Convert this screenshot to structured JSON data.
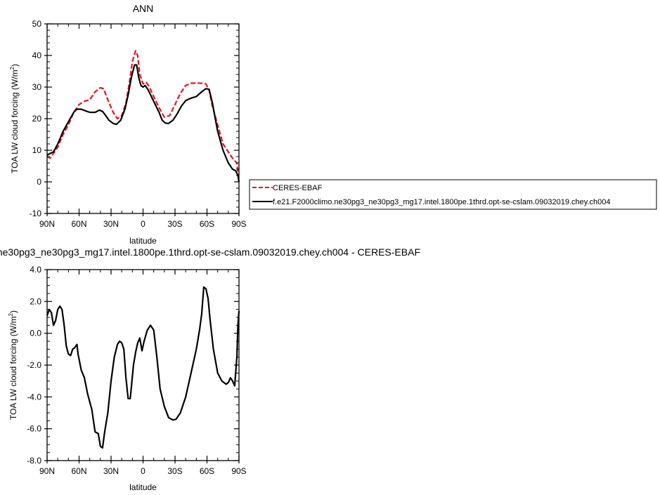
{
  "chart_data": [
    {
      "type": "line",
      "title": "ANN",
      "xlabel": "latitude",
      "ylabel": "TOA LW cloud forcing (W/m",
      "ylabel_sup": "2",
      "ylabel_close": ")",
      "xlim": [
        90,
        -90
      ],
      "ylim": [
        -10,
        50
      ],
      "xticks": [
        90,
        60,
        30,
        0,
        -30,
        -60,
        -90
      ],
      "xtick_labels": [
        "90N",
        "60N",
        "30N",
        "0",
        "30S",
        "60S",
        "90S"
      ],
      "yticks": [
        -10,
        0,
        10,
        20,
        30,
        40,
        50
      ],
      "ytick_labels": [
        "-10",
        "0",
        "10",
        "20",
        "30",
        "40",
        "50"
      ],
      "legend_position": "right",
      "series": [
        {
          "name": "CERES-EBAF",
          "color": "#e8141c",
          "dash": "dashed",
          "points": [
            [
              90,
              8
            ],
            [
              87,
              7.5
            ],
            [
              84,
              9
            ],
            [
              80,
              11
            ],
            [
              75,
              15
            ],
            [
              70,
              18
            ],
            [
              65,
              22
            ],
            [
              60,
              24.5
            ],
            [
              55,
              25.5
            ],
            [
              50,
              26
            ],
            [
              45,
              28.5
            ],
            [
              40,
              29.8
            ],
            [
              37,
              29.5
            ],
            [
              33,
              26
            ],
            [
              28,
              22
            ],
            [
              24,
              20
            ],
            [
              20,
              21
            ],
            [
              16,
              25
            ],
            [
              13,
              31
            ],
            [
              10,
              38
            ],
            [
              7,
              41.5
            ],
            [
              5,
              40
            ],
            [
              3,
              34
            ],
            [
              0,
              31
            ],
            [
              -3,
              31.5
            ],
            [
              -6,
              30
            ],
            [
              -10,
              27
            ],
            [
              -15,
              23.5
            ],
            [
              -20,
              20.5
            ],
            [
              -25,
              21
            ],
            [
              -30,
              24.5
            ],
            [
              -35,
              28
            ],
            [
              -40,
              30.5
            ],
            [
              -45,
              31.2
            ],
            [
              -50,
              31.3
            ],
            [
              -55,
              31.2
            ],
            [
              -59,
              31
            ],
            [
              -62,
              29
            ],
            [
              -65,
              24
            ],
            [
              -70,
              18
            ],
            [
              -75,
              12
            ],
            [
              -80,
              9.5
            ],
            [
              -85,
              7
            ],
            [
              -88,
              6
            ],
            [
              -89,
              3
            ],
            [
              -90,
              0
            ]
          ]
        },
        {
          "name": "f.e21.F2000climo.ne30pg3_ne30pg3_mg17.intel.1800pe.1thrd.opt-se-cslam.09032019.chey.ch004",
          "color": "#000000",
          "dash": "solid",
          "points": [
            [
              90,
              8.5
            ],
            [
              87,
              9
            ],
            [
              84,
              9.5
            ],
            [
              80,
              12
            ],
            [
              75,
              16
            ],
            [
              70,
              19
            ],
            [
              65,
              22
            ],
            [
              62,
              23
            ],
            [
              58,
              23
            ],
            [
              54,
              22.5
            ],
            [
              50,
              22
            ],
            [
              45,
              22
            ],
            [
              41,
              22.7
            ],
            [
              38,
              22.3
            ],
            [
              35,
              21
            ],
            [
              32,
              19.5
            ],
            [
              28,
              18.5
            ],
            [
              25,
              18.2
            ],
            [
              21,
              19.5
            ],
            [
              17,
              23
            ],
            [
              14,
              27.5
            ],
            [
              11,
              33
            ],
            [
              8,
              37
            ],
            [
              6,
              37
            ],
            [
              4,
              33
            ],
            [
              2,
              30.5
            ],
            [
              0,
              30
            ],
            [
              -2,
              30.5
            ],
            [
              -5,
              29
            ],
            [
              -10,
              25.5
            ],
            [
              -15,
              22
            ],
            [
              -18,
              19.5
            ],
            [
              -21,
              18.6
            ],
            [
              -24,
              18.5
            ],
            [
              -28,
              19.5
            ],
            [
              -32,
              21.5
            ],
            [
              -36,
              24
            ],
            [
              -40,
              25.7
            ],
            [
              -45,
              26.5
            ],
            [
              -50,
              27
            ],
            [
              -55,
              28.5
            ],
            [
              -59,
              29.5
            ],
            [
              -62,
              29.3
            ],
            [
              -65,
              25
            ],
            [
              -70,
              16
            ],
            [
              -75,
              10
            ],
            [
              -80,
              6
            ],
            [
              -84,
              4
            ],
            [
              -87,
              3.5
            ],
            [
              -89,
              2
            ],
            [
              -90,
              0
            ]
          ]
        }
      ]
    },
    {
      "type": "line",
      "title": "ne30pg3_ne30pg3_mg17.intel.1800pe.1thrd.opt-se-cslam.09032019.chey.ch004 - CERES-EBAF",
      "xlabel": "latitude",
      "ylabel": "TOA LW cloud forcing (W/m",
      "ylabel_sup": "2",
      "ylabel_close": ")",
      "xlim": [
        90,
        -90
      ],
      "ylim": [
        -8,
        4
      ],
      "xticks": [
        90,
        60,
        30,
        0,
        -30,
        -60,
        -90
      ],
      "xtick_labels": [
        "90N",
        "60N",
        "30N",
        "0",
        "30S",
        "60S",
        "90S"
      ],
      "yticks": [
        -8,
        -6,
        -4,
        -2,
        0,
        2,
        4
      ],
      "ytick_labels": [
        "-8.0",
        "-6.0",
        "-4.0",
        "-2.0",
        "0.0",
        "2.0",
        "4.0"
      ],
      "series": [
        {
          "color": "#000000",
          "dash": "solid",
          "points": [
            [
              90,
              1.1
            ],
            [
              88,
              1.5
            ],
            [
              86,
              1.3
            ],
            [
              84,
              0.5
            ],
            [
              82,
              0.8
            ],
            [
              80,
              1.5
            ],
            [
              78,
              1.7
            ],
            [
              76,
              1.5
            ],
            [
              74,
              0.5
            ],
            [
              72,
              -0.8
            ],
            [
              70,
              -1.3
            ],
            [
              68,
              -1.4
            ],
            [
              66,
              -1.0
            ],
            [
              64,
              -0.9
            ],
            [
              62,
              -0.7
            ],
            [
              61,
              -1.3
            ],
            [
              58,
              -2.3
            ],
            [
              55,
              -2.8
            ],
            [
              52,
              -3.8
            ],
            [
              48,
              -4.8
            ],
            [
              45,
              -6.2
            ],
            [
              42,
              -6.3
            ],
            [
              40,
              -7.1
            ],
            [
              38,
              -7.2
            ],
            [
              36,
              -6.2
            ],
            [
              33,
              -5.0
            ],
            [
              30,
              -3.0
            ],
            [
              27,
              -1.5
            ],
            [
              24,
              -0.7
            ],
            [
              22,
              -0.5
            ],
            [
              20,
              -0.6
            ],
            [
              18,
              -1.0
            ],
            [
              16,
              -2.8
            ],
            [
              14,
              -4.1
            ],
            [
              12,
              -4.1
            ],
            [
              9,
              -2.0
            ],
            [
              7,
              -1.2
            ],
            [
              5,
              -0.6
            ],
            [
              3,
              -0.3
            ],
            [
              1,
              -1.1
            ],
            [
              -1,
              -0.5
            ],
            [
              -4,
              0.2
            ],
            [
              -7,
              0.5
            ],
            [
              -10,
              0.2
            ],
            [
              -13,
              -1.5
            ],
            [
              -16,
              -3.5
            ],
            [
              -20,
              -4.6
            ],
            [
              -24,
              -5.3
            ],
            [
              -28,
              -5.45
            ],
            [
              -31,
              -5.4
            ],
            [
              -35,
              -5.0
            ],
            [
              -40,
              -4.0
            ],
            [
              -45,
              -2.5
            ],
            [
              -50,
              -1.0
            ],
            [
              -53,
              0.2
            ],
            [
              -55,
              1.2
            ],
            [
              -57,
              2.9
            ],
            [
              -59,
              2.8
            ],
            [
              -61,
              2.2
            ],
            [
              -63,
              0.8
            ],
            [
              -66,
              -1.0
            ],
            [
              -70,
              -2.5
            ],
            [
              -74,
              -3.0
            ],
            [
              -78,
              -3.2
            ],
            [
              -80,
              -3.1
            ],
            [
              -82,
              -2.8
            ],
            [
              -84,
              -3.0
            ],
            [
              -86,
              -3.3
            ],
            [
              -88,
              -1.5
            ],
            [
              -89,
              0.5
            ],
            [
              -90,
              1.4
            ]
          ]
        }
      ]
    }
  ]
}
